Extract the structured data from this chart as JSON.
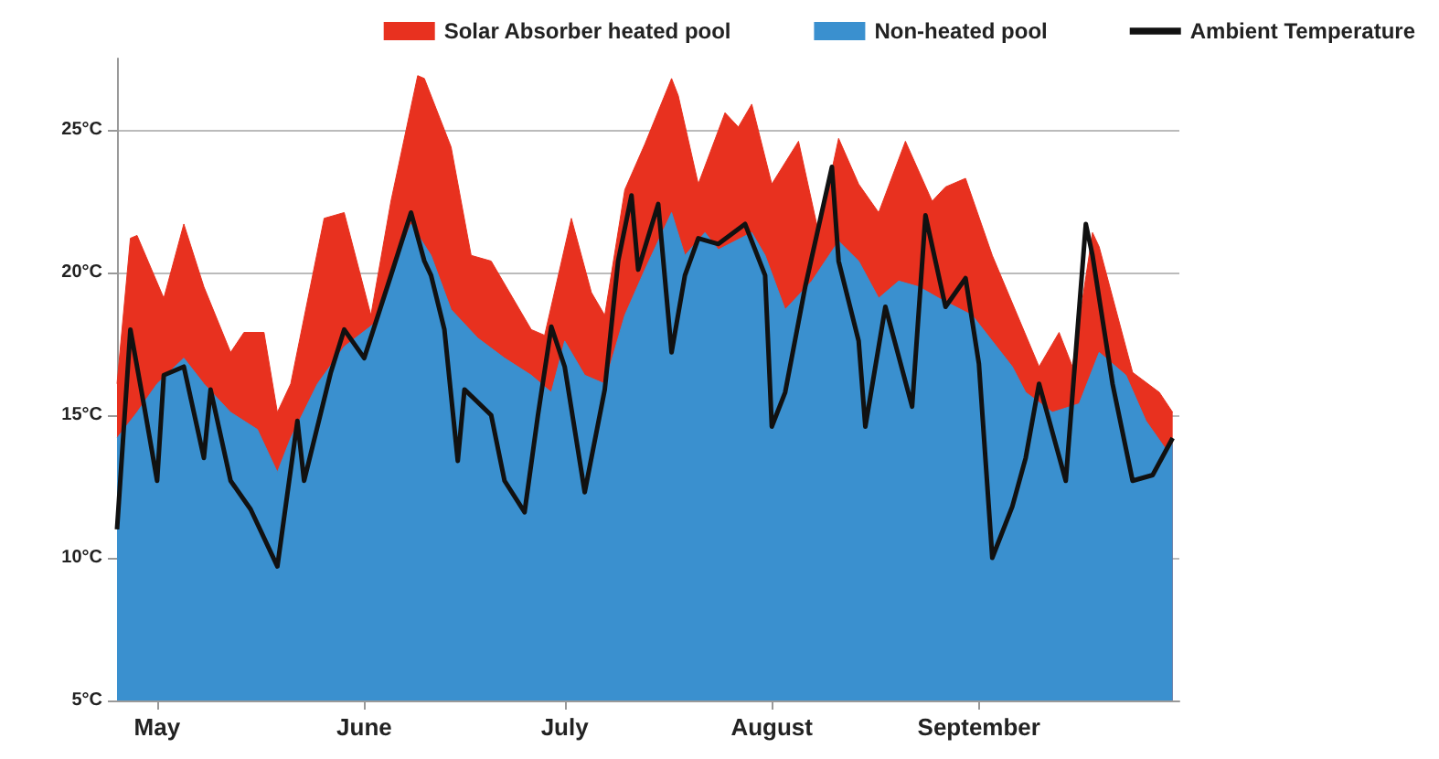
{
  "chart_data": {
    "type": "area",
    "legend": "top right",
    "grid": "y",
    "ylim": [
      5,
      27.5
    ],
    "yticks": [
      {
        "value": 5,
        "label": "5°C"
      },
      {
        "value": 10,
        "label": "10°C"
      },
      {
        "value": 15,
        "label": "15°C"
      },
      {
        "value": 20,
        "label": "20°C"
      },
      {
        "value": 25,
        "label": "25°C"
      }
    ],
    "xlim": [
      "--04-25",
      "--10-01"
    ],
    "xticks": [
      {
        "value": "--05-01",
        "label": "May"
      },
      {
        "value": "--06-01",
        "label": "June"
      },
      {
        "value": "--07-01",
        "label": "July"
      },
      {
        "value": "--08-01",
        "label": "August"
      },
      {
        "value": "--09-01",
        "label": "September"
      }
    ],
    "series": [
      {
        "name": "Solar Absorber heated pool",
        "color": "#e8311f",
        "x": [
          "--04-25",
          "--04-27",
          "--04-28",
          "--05-02",
          "--05-05",
          "--05-08",
          "--05-12",
          "--05-14",
          "--05-17",
          "--05-19",
          "--05-21",
          "--05-26",
          "--05-29",
          "--06-02",
          "--06-05",
          "--06-09",
          "--06-10",
          "--06-14",
          "--06-17",
          "--06-20",
          "--06-26",
          "--06-28",
          "--07-02",
          "--07-05",
          "--07-07",
          "--07-10",
          "--07-13",
          "--07-17",
          "--07-18",
          "--07-21",
          "--07-25",
          "--07-27",
          "--07-29",
          "--08-01",
          "--08-05",
          "--08-08",
          "--08-11",
          "--08-14",
          "--08-17",
          "--08-21",
          "--08-25",
          "--08-27",
          "--08-30",
          "--09-03",
          "--09-10",
          "--09-13",
          "--09-15",
          "--09-18",
          "--09-19",
          "--09-24",
          "--09-28",
          "--09-30"
        ],
        "values": [
          16.1,
          21.2,
          21.3,
          19.1,
          21.7,
          19.5,
          17.2,
          17.9,
          17.9,
          15.1,
          16.1,
          21.9,
          22.1,
          18.5,
          22.5,
          26.9,
          26.8,
          24.4,
          20.6,
          20.4,
          18.0,
          17.8,
          21.9,
          19.3,
          18.5,
          22.9,
          24.5,
          26.8,
          26.2,
          23.1,
          25.6,
          25.1,
          25.9,
          23.1,
          24.6,
          21.4,
          24.7,
          23.1,
          22.1,
          24.6,
          22.5,
          23.0,
          23.3,
          20.6,
          16.7,
          17.9,
          16.7,
          21.4,
          20.9,
          16.5,
          15.8,
          15.1
        ]
      },
      {
        "name": "Non-heated pool",
        "color": "#3a90cf",
        "x": [
          "--04-25",
          "--04-28",
          "--05-01",
          "--05-05",
          "--05-08",
          "--05-12",
          "--05-16",
          "--05-19",
          "--05-21",
          "--05-25",
          "--05-29",
          "--06-03",
          "--06-05",
          "--06-08",
          "--06-11",
          "--06-14",
          "--06-18",
          "--06-22",
          "--06-26",
          "--06-29",
          "--07-01",
          "--07-04",
          "--07-07",
          "--07-10",
          "--07-13",
          "--07-17",
          "--07-19",
          "--07-22",
          "--07-24",
          "--07-29",
          "--07-31",
          "--08-03",
          "--08-07",
          "--08-11",
          "--08-14",
          "--08-17",
          "--08-20",
          "--08-23",
          "--08-26",
          "--08-31",
          "--09-03",
          "--09-06",
          "--09-08",
          "--09-12",
          "--09-16",
          "--09-19",
          "--09-23",
          "--09-26",
          "--09-29",
          "--09-30"
        ],
        "values": [
          14.2,
          15.1,
          16.1,
          17.0,
          16.1,
          15.1,
          14.5,
          13.0,
          14.2,
          16.1,
          17.4,
          18.3,
          19.9,
          21.7,
          20.6,
          18.7,
          17.7,
          17.0,
          16.4,
          15.8,
          17.6,
          16.4,
          16.1,
          18.5,
          20.1,
          22.1,
          20.6,
          21.4,
          20.8,
          21.4,
          20.6,
          18.7,
          19.7,
          21.1,
          20.4,
          19.1,
          19.7,
          19.5,
          19.1,
          18.5,
          17.6,
          16.7,
          15.8,
          15.1,
          15.4,
          17.2,
          16.4,
          14.8,
          13.8,
          14.0
        ]
      },
      {
        "name": "Ambient Temperature",
        "type": "line",
        "color": "#111111",
        "x": [
          "--04-25",
          "--04-27",
          "--04-29",
          "--05-01",
          "--05-02",
          "--05-05",
          "--05-08",
          "--05-09",
          "--05-12",
          "--05-15",
          "--05-19",
          "--05-22",
          "--05-23",
          "--05-27",
          "--05-29",
          "--06-01",
          "--06-05",
          "--06-08",
          "--06-10",
          "--06-11",
          "--06-13",
          "--06-15",
          "--06-16",
          "--06-20",
          "--06-22",
          "--06-25",
          "--06-27",
          "--06-29",
          "--07-01",
          "--07-04",
          "--07-07",
          "--07-09",
          "--07-11",
          "--07-12",
          "--07-15",
          "--07-17",
          "--07-19",
          "--07-21",
          "--07-24",
          "--07-28",
          "--07-31",
          "--08-01",
          "--08-03",
          "--08-06",
          "--08-10",
          "--08-11",
          "--08-14",
          "--08-15",
          "--08-18",
          "--08-22",
          "--08-24",
          "--08-27",
          "--08-30",
          "--09-01",
          "--09-03",
          "--09-06",
          "--09-08",
          "--09-10",
          "--09-14",
          "--09-17",
          "--09-18",
          "--09-21",
          "--09-24",
          "--09-27",
          "--09-30"
        ],
        "values": [
          11.0,
          18.0,
          15.4,
          12.7,
          16.4,
          16.7,
          13.5,
          15.9,
          12.7,
          11.7,
          9.7,
          14.8,
          12.7,
          16.5,
          18.0,
          17.0,
          19.9,
          22.1,
          20.4,
          19.9,
          18.0,
          13.4,
          15.9,
          15.0,
          12.7,
          11.6,
          15.0,
          18.1,
          16.7,
          12.3,
          15.9,
          20.4,
          22.7,
          20.1,
          22.4,
          17.2,
          19.9,
          21.2,
          21.0,
          21.7,
          19.9,
          14.6,
          15.8,
          19.5,
          23.7,
          20.4,
          17.6,
          14.6,
          18.8,
          15.3,
          22.0,
          18.8,
          19.8,
          16.8,
          10.0,
          11.8,
          13.5,
          16.1,
          12.7,
          21.7,
          20.6,
          16.1,
          12.7,
          12.9,
          14.2
        ]
      }
    ]
  }
}
